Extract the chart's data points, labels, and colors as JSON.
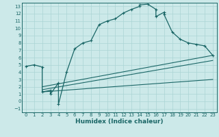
{
  "title": "",
  "xlabel": "Humidex (Indice chaleur)",
  "xlim": [
    -0.5,
    23.5
  ],
  "ylim": [
    -1.5,
    13.5
  ],
  "xticks": [
    0,
    1,
    2,
    3,
    4,
    5,
    6,
    7,
    8,
    9,
    10,
    11,
    12,
    13,
    14,
    15,
    16,
    17,
    18,
    19,
    20,
    21,
    22,
    23
  ],
  "yticks": [
    -1,
    0,
    1,
    2,
    3,
    4,
    5,
    6,
    7,
    8,
    9,
    10,
    11,
    12,
    13
  ],
  "bg_color": "#cce9e9",
  "grid_color": "#aad4d4",
  "line_color": "#1a6666",
  "curve1_x": [
    0,
    1,
    2,
    2,
    3,
    3,
    4,
    4,
    5,
    6,
    7,
    8,
    9,
    10,
    11,
    12,
    13,
    14,
    14,
    15,
    16,
    16,
    17,
    17,
    18,
    19,
    20,
    21,
    22,
    23
  ],
  "curve1_y": [
    4.8,
    5.0,
    4.7,
    1.3,
    1.5,
    1.0,
    2.5,
    -0.4,
    4.0,
    7.2,
    8.0,
    8.3,
    10.5,
    11.0,
    11.3,
    12.1,
    12.6,
    13.0,
    13.2,
    13.3,
    12.6,
    11.6,
    12.2,
    11.9,
    9.5,
    8.5,
    8.0,
    7.8,
    7.6,
    6.3
  ],
  "line1_x": [
    2,
    23
  ],
  "line1_y": [
    2.0,
    6.3
  ],
  "line2_x": [
    2,
    23
  ],
  "line2_y": [
    1.6,
    5.6
  ],
  "line3_x": [
    2,
    23
  ],
  "line3_y": [
    1.3,
    3.0
  ]
}
